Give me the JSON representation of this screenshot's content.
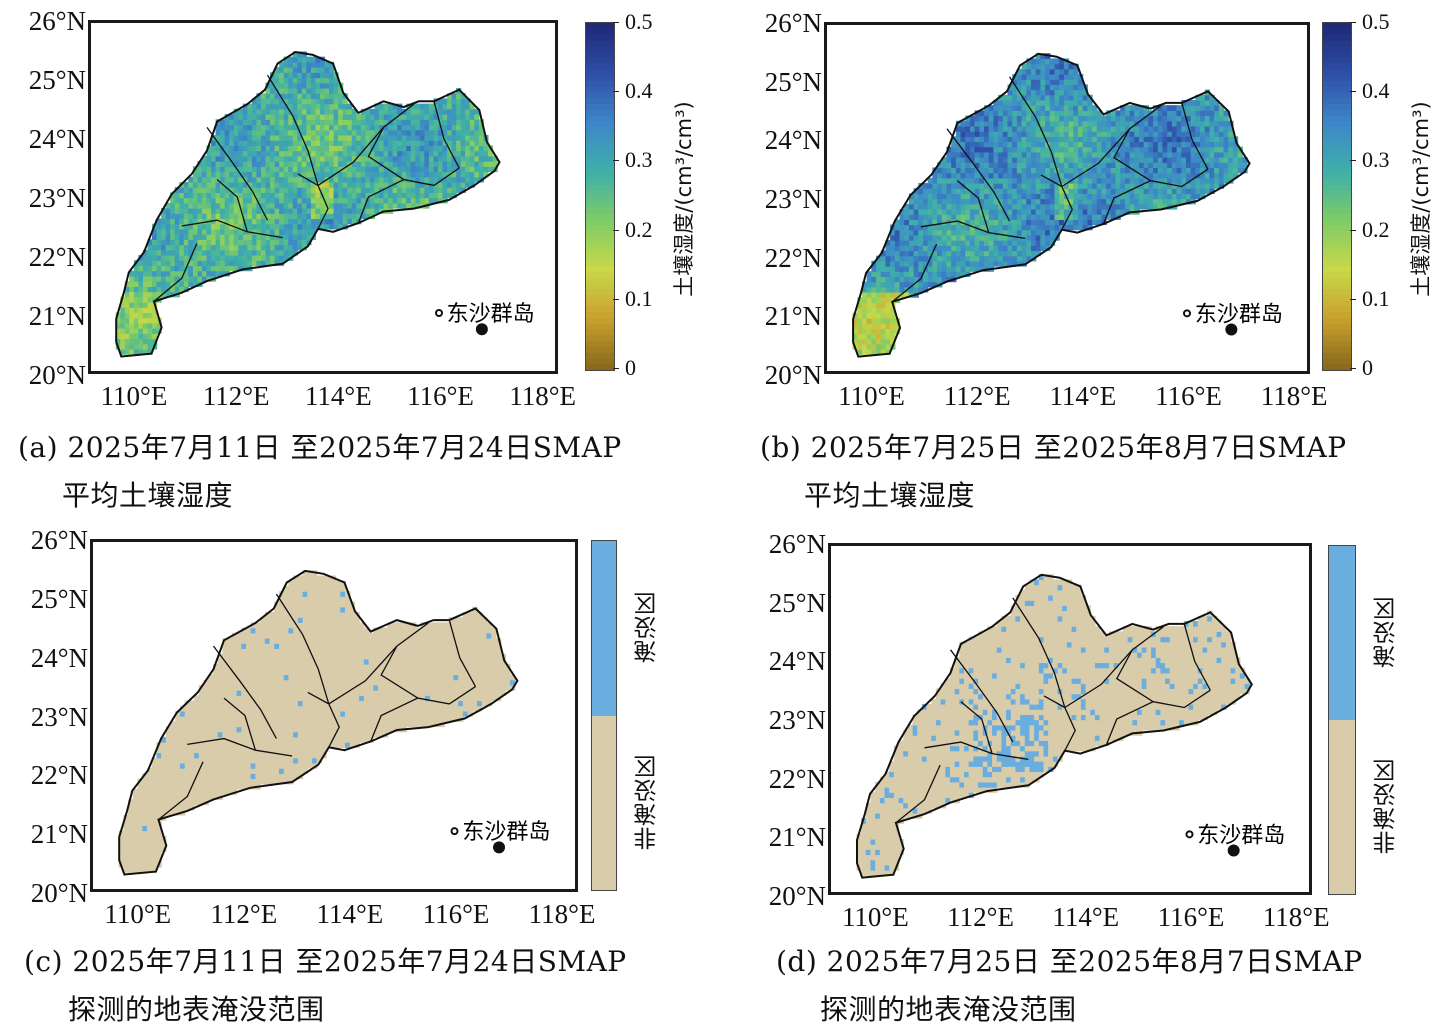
{
  "figure": {
    "lat_ticks": [
      "26°N",
      "25°N",
      "24°N",
      "23°N",
      "22°N",
      "21°N",
      "20°N"
    ],
    "lon_ticks": [
      "110°E",
      "112°E",
      "114°E",
      "116°E",
      "118°E"
    ],
    "island_label": "东沙群岛"
  },
  "panels": [
    {
      "id": "a",
      "kind": "continuous",
      "caption_line1": "(a) 2025年7月11日 至2025年7月24日SMAP",
      "caption_line2": "平均土壤湿度",
      "colorbar": {
        "title": "土壤湿度/(cm³/cm³)",
        "ticks": [
          "0.5",
          "0.4",
          "0.3",
          "0.2",
          "0.1",
          "0"
        ],
        "range": [
          0,
          0.5
        ]
      },
      "mean_moisture": 0.28
    },
    {
      "id": "b",
      "kind": "continuous",
      "caption_line1": "(b) 2025年7月25日 至2025年8月7日SMAP",
      "caption_line2": "平均土壤湿度",
      "colorbar": {
        "title": "土壤湿度/(cm³/cm³)",
        "ticks": [
          "0.5",
          "0.4",
          "0.3",
          "0.2",
          "0.1",
          "0"
        ],
        "range": [
          0,
          0.5
        ]
      },
      "mean_moisture": 0.33
    },
    {
      "id": "c",
      "kind": "categorical",
      "caption_line1": "(c) 2025年7月11日 至2025年7月24日SMAP",
      "caption_line2": "探测的地表淹没范围",
      "legend": {
        "flooded": "淹没区",
        "not_flooded": "非淹没区"
      }
    },
    {
      "id": "d",
      "kind": "categorical",
      "caption_line1": "(d) 2025年7月25日 至2025年8月7日SMAP",
      "caption_line2": "探测的地表淹没范围",
      "legend": {
        "flooded": "淹没区",
        "not_flooded": "非淹没区"
      }
    }
  ],
  "colors": {
    "flooded": "#6aaedf",
    "not_flooded": "#d9ccaa",
    "frame": "#1a1a1a",
    "colormap": [
      "#8a6a1c",
      "#c9a12e",
      "#c8d848",
      "#7fcc66",
      "#3fb0a8",
      "#3d88c8",
      "#2f4fa8",
      "#1f2a78"
    ]
  }
}
